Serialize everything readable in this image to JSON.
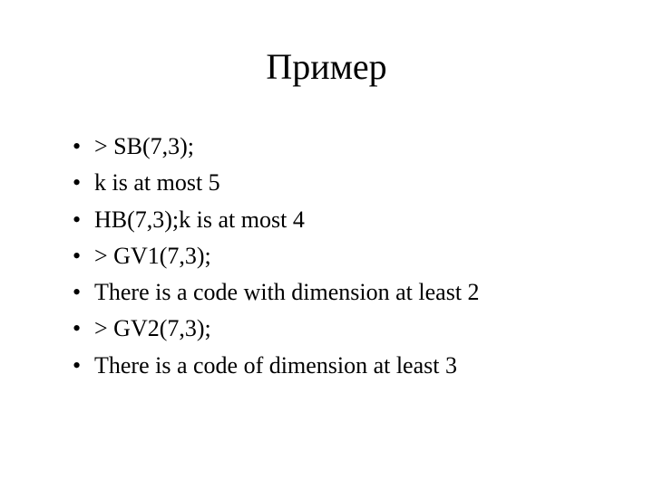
{
  "slide": {
    "title": "Пример",
    "title_fontsize": 40,
    "body_fontsize": 26,
    "background_color": "#ffffff",
    "text_color": "#000000",
    "font_family": "Times New Roman",
    "bullets": [
      "> SB(7,3);",
      "k is at most 5",
      "HB(7,3);k is at most 4",
      "> GV1(7,3);",
      "There is a code with dimension at least 2",
      "> GV2(7,3);",
      "There is a code of dimension at least 3"
    ]
  }
}
